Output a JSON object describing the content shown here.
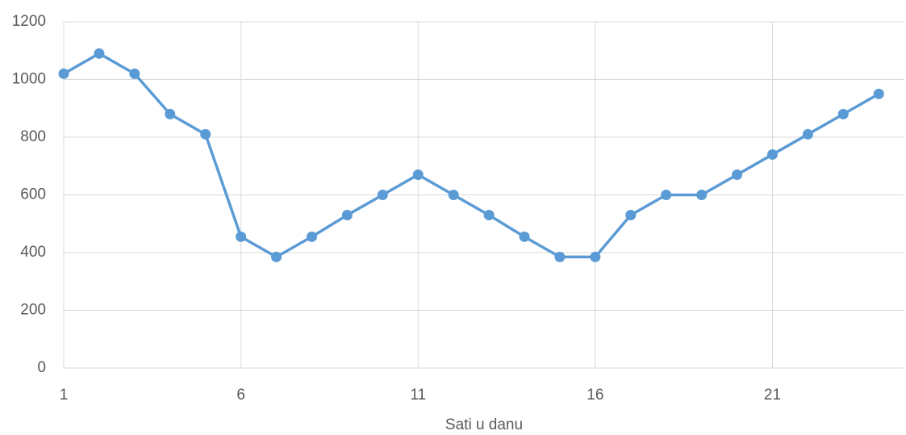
{
  "chart_data": {
    "type": "line",
    "x_label": "Sati u danu",
    "x": [
      1,
      2,
      3,
      4,
      5,
      6,
      7,
      8,
      9,
      10,
      11,
      12,
      13,
      14,
      15,
      16,
      17,
      18,
      19,
      20,
      21,
      22,
      23,
      24
    ],
    "series": [
      {
        "color": "#5b9bd5",
        "values": [
          1020,
          1090,
          1020,
          880,
          810,
          455,
          385,
          455,
          530,
          600,
          670,
          600,
          530,
          455,
          385,
          385,
          530,
          600,
          600,
          670,
          740,
          810,
          880,
          950
        ]
      }
    ],
    "xlim": [
      1,
      24.7
    ],
    "xticks": [
      1,
      6,
      11,
      16,
      21
    ],
    "ylim": [
      0,
      1200
    ],
    "yticks": [
      0,
      200,
      400,
      600,
      800,
      1000,
      1200
    ],
    "grid": true
  }
}
